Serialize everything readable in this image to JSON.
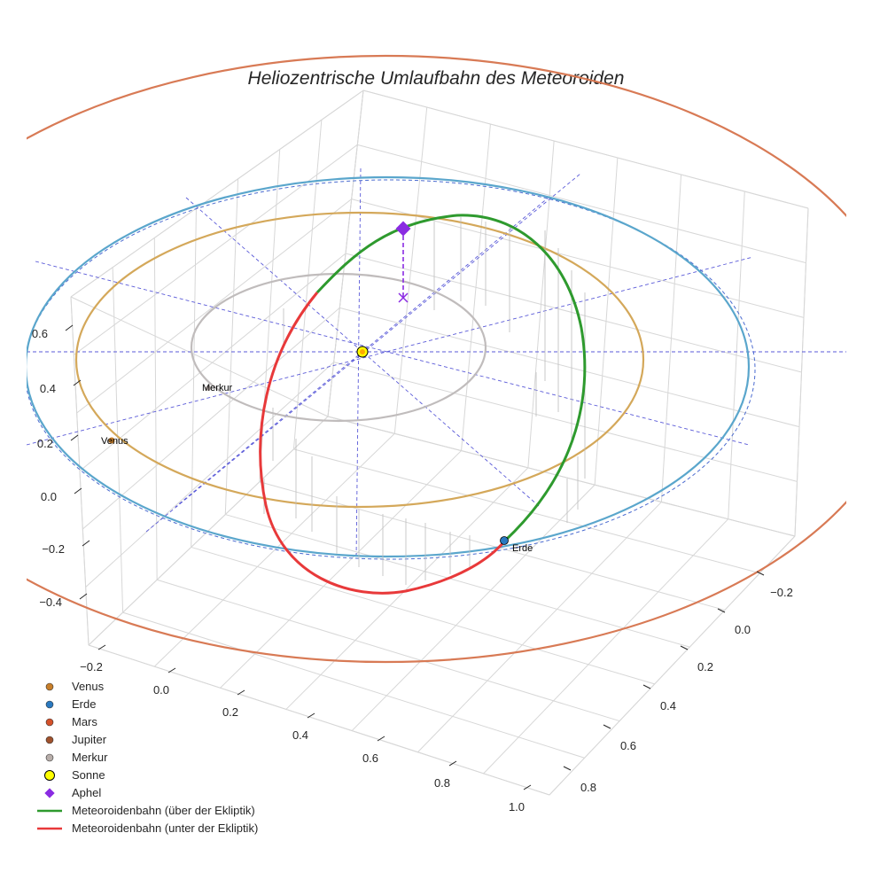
{
  "chart_data": {
    "type": "line",
    "projection": "3d",
    "title": "Heliozentrische Umlaufbahn des Meteoroiden",
    "grid": true,
    "legend_position": "bottom-left",
    "x_ticks": [
      "−0.2",
      "0.0",
      "0.2",
      "0.4",
      "0.6",
      "0.8",
      "1.0"
    ],
    "y_ticks": [
      "−0.2",
      "0.0",
      "0.2",
      "0.4",
      "0.6",
      "0.8"
    ],
    "z_ticks": [
      "−0.4",
      "−0.2",
      "0.0",
      "0.2",
      "0.4",
      "0.6"
    ],
    "bodies": [
      {
        "name": "Merkur",
        "label": "Merkur",
        "color": "#b8aeaa",
        "orbit_color": "#c0bcbc",
        "orbit_radius_au": 0.39
      },
      {
        "name": "Venus",
        "label": "Venus",
        "color": "#c87f2a",
        "orbit_color": "#d4a85a",
        "orbit_radius_au": 0.72
      },
      {
        "name": "Erde",
        "label": "Erde",
        "color": "#2a79c0",
        "orbit_color": "#5aa6cc",
        "orbit_radius_au": 1.0
      },
      {
        "name": "Mars",
        "color": "#d4512a",
        "orbit_color": "#d87a55",
        "orbit_radius_au": 1.52
      },
      {
        "name": "Jupiter",
        "color": "#a0522d"
      }
    ],
    "sun": {
      "name": "Sonne",
      "color": "#ffff00"
    },
    "aphel": {
      "name": "Aphel",
      "color": "#8a2be2"
    },
    "series": [
      {
        "name": "Meteoroidenbahn (über der Ekliptik)",
        "color": "#2e9a2e"
      },
      {
        "name": "Meteoroidenbahn (unter der Ekliptik)",
        "color": "#e8393a"
      }
    ]
  },
  "legend": [
    {
      "key": "venus",
      "label": "Venus",
      "symbol": "dot",
      "color": "#c87f2a"
    },
    {
      "key": "erde",
      "label": "Erde",
      "symbol": "dot",
      "color": "#2a79c0"
    },
    {
      "key": "mars",
      "label": "Mars",
      "symbol": "dot",
      "color": "#d4512a"
    },
    {
      "key": "jupiter",
      "label": "Jupiter",
      "symbol": "dot",
      "color": "#a0522d"
    },
    {
      "key": "merkur",
      "label": "Merkur",
      "symbol": "dot",
      "color": "#b8aeaa"
    },
    {
      "key": "sonne",
      "label": "Sonne",
      "symbol": "sun",
      "color": "#ffff00"
    },
    {
      "key": "aphel",
      "label": "Aphel",
      "symbol": "diamond",
      "color": "#8a2be2"
    },
    {
      "key": "above",
      "label": "Meteoroidenbahn (über der Ekliptik)",
      "symbol": "line",
      "color": "#2e9a2e"
    },
    {
      "key": "below",
      "label": "Meteoroidenbahn (unter der Ekliptik)",
      "symbol": "line",
      "color": "#e8393a"
    }
  ]
}
